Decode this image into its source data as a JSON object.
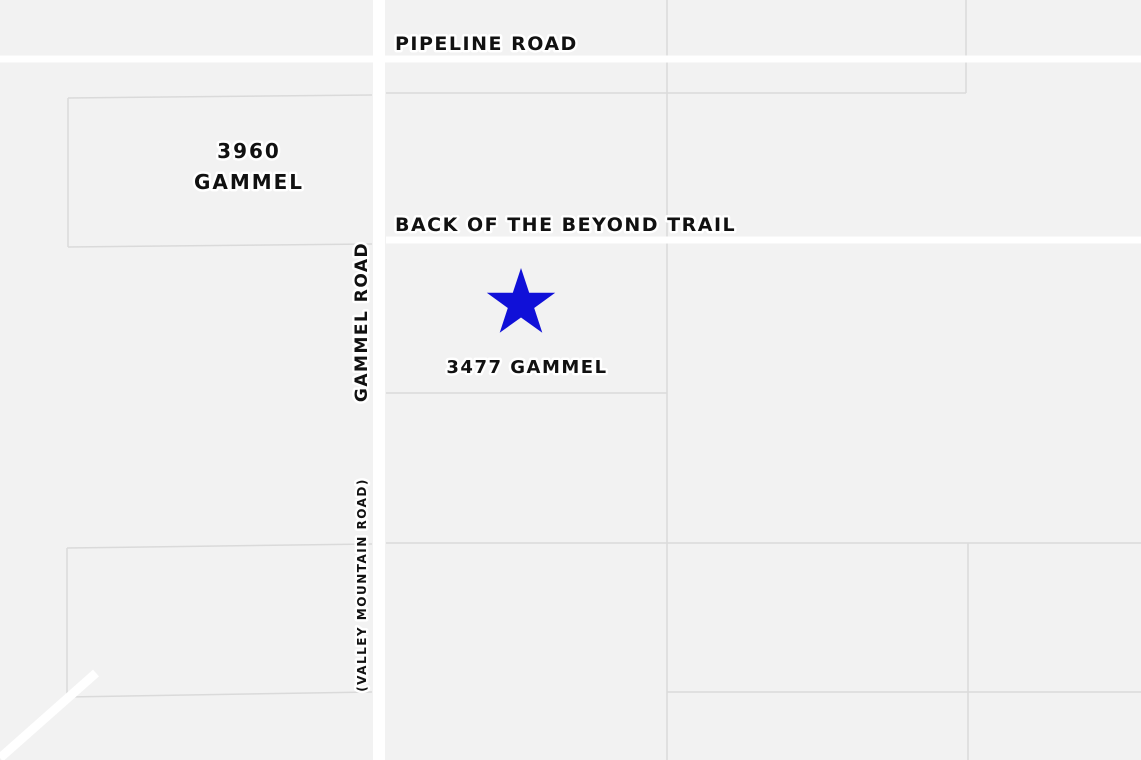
{
  "roads": {
    "pipeline": "PIPELINE ROAD",
    "back_of_the_beyond": "BACK OF THE BEYOND TRAIL",
    "gammel": "GAMMEL ROAD",
    "valley_mountain": "(VALLEY MOUNTAIN ROAD)"
  },
  "parcels": {
    "p3960_number": "3960",
    "p3960_street": "GAMMEL",
    "p3477": "3477 GAMMEL"
  },
  "marker": {
    "icon": "star-icon",
    "color": "#1010d8"
  },
  "colors": {
    "land": "#f2f2f2",
    "road": "#ffffff",
    "parcel_line": "#dadada",
    "label_text": "#111111"
  }
}
